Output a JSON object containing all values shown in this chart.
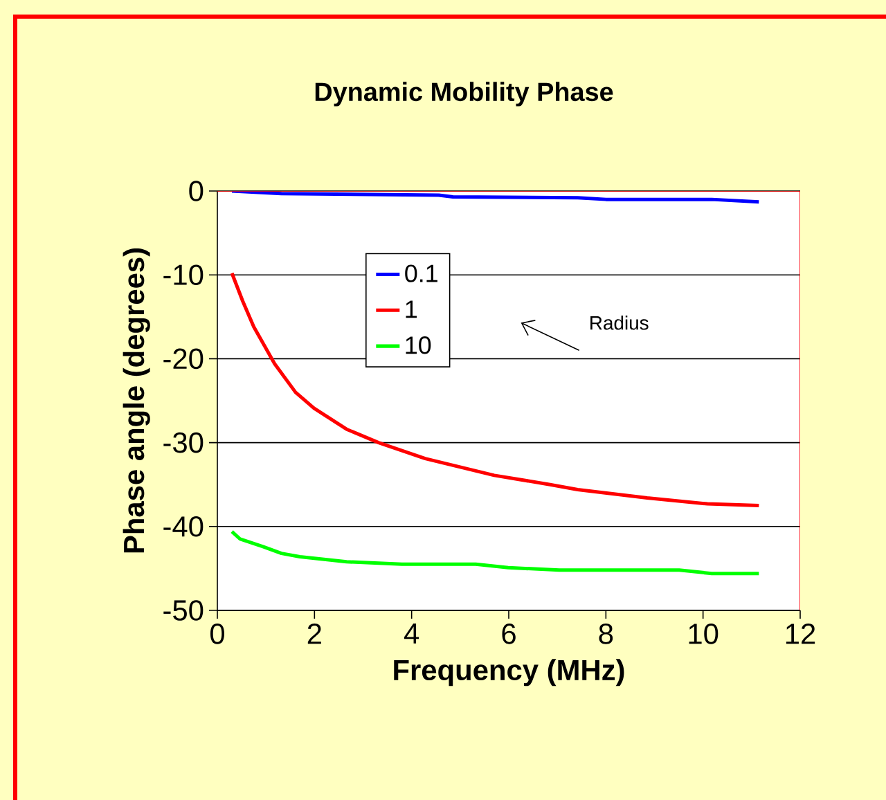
{
  "chart_data": {
    "type": "line",
    "title": "Dynamic Mobility Phase",
    "xlabel": "Frequency (MHz)",
    "ylabel": "Phase angle (degrees)",
    "xlim": [
      0,
      12
    ],
    "xticks": [
      0,
      2,
      4,
      6,
      8,
      10,
      12
    ],
    "ylim": [
      -50,
      0
    ],
    "yticks": [
      -50,
      -40,
      -30,
      -20,
      -10,
      0
    ],
    "grid": "y",
    "legend": "top left",
    "marker": "none",
    "line_style": "solid",
    "annotations": [
      "Radius"
    ],
    "series": [
      {
        "name": "0.1",
        "color": "#0000ff",
        "x": [
          0.3,
          1.32,
          4.56,
          4.85,
          7.42,
          8,
          10.18,
          11.15
        ],
        "values": [
          0,
          -0.3,
          -0.5,
          -0.7,
          -0.8,
          -1,
          -1,
          -1.3
        ]
      },
      {
        "name": "1",
        "color": "#ff0000",
        "x": [
          0.3,
          0.52,
          0.75,
          1.18,
          1.61,
          1.99,
          2.66,
          3.32,
          4.28,
          5.7,
          6.85,
          7.42,
          8.85,
          10.09,
          11.15
        ],
        "values": [
          -9.8,
          -13.1,
          -16.2,
          -20.6,
          -24,
          -25.9,
          -28.4,
          -30,
          -31.9,
          -33.9,
          -35,
          -35.6,
          -36.6,
          -37.3,
          -37.5
        ]
      },
      {
        "name": "10",
        "color": "#00ff00",
        "x": [
          0.3,
          0.47,
          0.94,
          1.32,
          1.7,
          2.66,
          3.8,
          5.32,
          5.99,
          7.04,
          9.51,
          10.18,
          11.15
        ],
        "values": [
          -40.6,
          -41.5,
          -42.4,
          -43.2,
          -43.6,
          -44.2,
          -44.5,
          -44.5,
          -44.9,
          -45.2,
          -45.2,
          -45.6,
          -45.6
        ]
      }
    ]
  }
}
